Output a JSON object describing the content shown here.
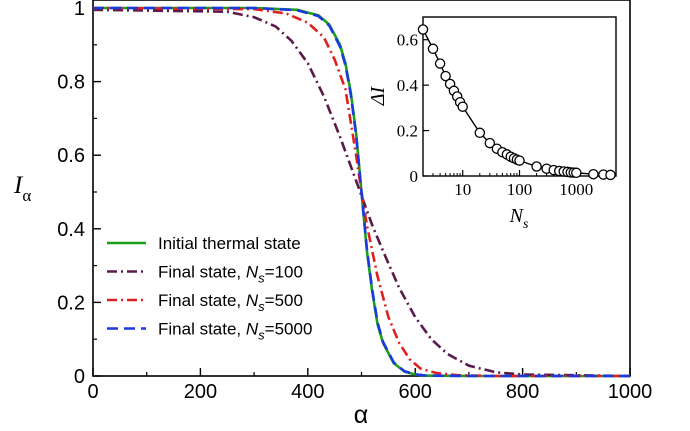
{
  "chart_data": [
    {
      "type": "line",
      "xlabel": "α",
      "ylabel": "I",
      "ylabel_subscript": "α",
      "xlim": [
        0,
        1000
      ],
      "ylim": [
        0,
        1
      ],
      "xticks": [
        0,
        200,
        400,
        600,
        800,
        1000
      ],
      "yticks": [
        0,
        0.2,
        0.4,
        0.6,
        0.8,
        1
      ],
      "xtick_labels": [
        "0",
        "200",
        "400",
        "600",
        "800",
        "1000"
      ],
      "ytick_labels": [
        "0",
        "0.2",
        "0.4",
        "0.6",
        "0.8",
        "1"
      ],
      "legend_position": "lower-left",
      "series": [
        {
          "name": "Initial thermal state",
          "legend_main": "Initial thermal state",
          "legend_sym": "",
          "legend_sub": "",
          "legend_eq": "",
          "color": "#1a9e1a",
          "dash": "solid",
          "x": [
            0,
            300,
            380,
            420,
            440,
            460,
            470,
            480,
            490,
            500,
            510,
            520,
            530,
            540,
            560,
            580,
            600,
            620,
            700,
            1000
          ],
          "y": [
            1,
            1,
            0.995,
            0.98,
            0.955,
            0.9,
            0.85,
            0.77,
            0.66,
            0.5,
            0.34,
            0.23,
            0.14,
            0.09,
            0.035,
            0.012,
            0.004,
            0.001,
            0,
            0
          ]
        },
        {
          "name": "Final state, Ns=100",
          "legend_main": "Final state, ",
          "legend_sym": "N",
          "legend_sub": "s",
          "legend_eq": "=100",
          "color": "#5a1a4a",
          "dash": "dashdot",
          "x": [
            0,
            250,
            300,
            340,
            370,
            400,
            430,
            460,
            480,
            500,
            520,
            540,
            570,
            600,
            630,
            660,
            700,
            750,
            800,
            1000
          ],
          "y": [
            0.995,
            0.99,
            0.975,
            0.95,
            0.91,
            0.85,
            0.76,
            0.65,
            0.57,
            0.49,
            0.41,
            0.34,
            0.24,
            0.16,
            0.1,
            0.06,
            0.028,
            0.01,
            0.004,
            0
          ]
        },
        {
          "name": "Final state, Ns=500",
          "legend_main": "Final state, ",
          "legend_sym": "N",
          "legend_sub": "s",
          "legend_eq": "=500",
          "color": "#e02020",
          "dash": "dashdot",
          "x": [
            0,
            300,
            360,
            400,
            430,
            450,
            470,
            490,
            500,
            510,
            530,
            550,
            570,
            590,
            610,
            640,
            680,
            750,
            1000
          ],
          "y": [
            1,
            0.997,
            0.985,
            0.96,
            0.92,
            0.86,
            0.78,
            0.6,
            0.5,
            0.41,
            0.27,
            0.16,
            0.09,
            0.045,
            0.02,
            0.008,
            0.002,
            0,
            0
          ]
        },
        {
          "name": "Final state, Ns=5000",
          "legend_main": "Final state, ",
          "legend_sym": "N",
          "legend_sub": "s",
          "legend_eq": "=5000",
          "color": "#1a3ae0",
          "dash": "dashed",
          "x": [
            0,
            300,
            380,
            420,
            440,
            460,
            470,
            480,
            490,
            500,
            510,
            520,
            530,
            540,
            560,
            580,
            600,
            620,
            700,
            1000
          ],
          "y": [
            1,
            1,
            0.994,
            0.978,
            0.952,
            0.895,
            0.845,
            0.765,
            0.655,
            0.5,
            0.345,
            0.235,
            0.145,
            0.093,
            0.037,
            0.013,
            0.0045,
            0.0012,
            0,
            0
          ]
        }
      ]
    },
    {
      "type": "scatter",
      "xlabel": "N",
      "xlabel_subscript": "s",
      "ylabel": "ΔI",
      "xscale": "log",
      "xlim": [
        2,
        5000
      ],
      "ylim": [
        0,
        0.7
      ],
      "xticks": [
        10,
        100,
        1000
      ],
      "yticks": [
        0,
        0.2,
        0.4,
        0.6
      ],
      "xtick_labels": [
        "10",
        "100",
        "1000"
      ],
      "ytick_labels": [
        "0",
        "0.2",
        "0.4",
        "0.6"
      ],
      "marker": "open-circle",
      "color": "#000000",
      "x": [
        2,
        3,
        4,
        5,
        6,
        7,
        8,
        9,
        10,
        20,
        30,
        40,
        50,
        60,
        70,
        80,
        90,
        100,
        200,
        300,
        400,
        500,
        600,
        700,
        800,
        900,
        1000,
        2000,
        3000,
        4000
      ],
      "y": [
        0.645,
        0.56,
        0.495,
        0.44,
        0.405,
        0.375,
        0.35,
        0.325,
        0.305,
        0.19,
        0.145,
        0.12,
        0.105,
        0.095,
        0.085,
        0.078,
        0.072,
        0.068,
        0.042,
        0.032,
        0.026,
        0.022,
        0.02,
        0.018,
        0.016,
        0.015,
        0.014,
        0.008,
        0.006,
        0.005
      ]
    }
  ]
}
